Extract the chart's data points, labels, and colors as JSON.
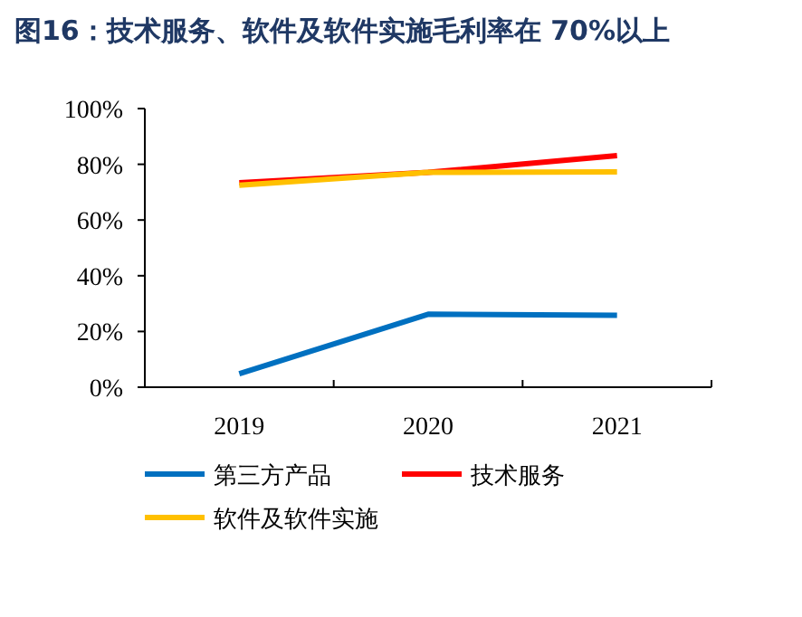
{
  "chart_data": {
    "type": "line",
    "title": "图16：技术服务、软件及软件实施毛利率在 70%以上",
    "categories": [
      "2019",
      "2020",
      "2021"
    ],
    "series": [
      {
        "name": "第三方产品",
        "color": "#0070c0",
        "values": [
          4.8,
          26.2,
          25.8
        ]
      },
      {
        "name": "技术服务",
        "color": "#ff0000",
        "values": [
          73.4,
          77.1,
          83.1
        ]
      },
      {
        "name": "软件及软件实施",
        "color": "#ffc000",
        "values": [
          72.5,
          77.1,
          77.3
        ]
      }
    ],
    "ylim": [
      0,
      100
    ],
    "yticks": [
      {
        "value": 0,
        "label": "0%"
      },
      {
        "value": 20,
        "label": "20%"
      },
      {
        "value": 40,
        "label": "40%"
      },
      {
        "value": 60,
        "label": "60%"
      },
      {
        "value": 80,
        "label": "80%"
      },
      {
        "value": 100,
        "label": "100%"
      }
    ],
    "grid": false,
    "legend": "bottom",
    "marker": "none"
  }
}
